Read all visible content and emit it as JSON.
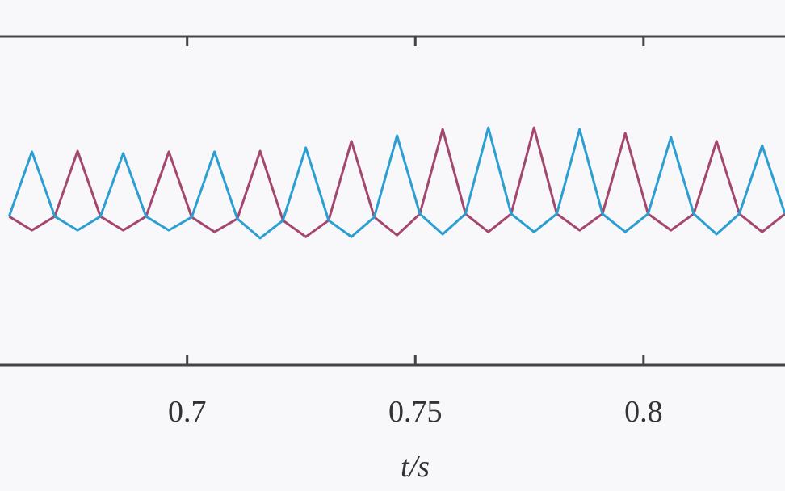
{
  "chart_data": {
    "type": "line",
    "xlabel": "t/s",
    "x": [
      0.661,
      0.666,
      0.671,
      0.676,
      0.681,
      0.686,
      0.691,
      0.696,
      0.701,
      0.706,
      0.711,
      0.716,
      0.721,
      0.726,
      0.731,
      0.736,
      0.741,
      0.746,
      0.751,
      0.756,
      0.761,
      0.766,
      0.771,
      0.776,
      0.781,
      0.786,
      0.791,
      0.796,
      0.801,
      0.806,
      0.811,
      0.816,
      0.821,
      0.826,
      0.831
    ],
    "series": [
      {
        "color": "#a3476f",
        "values": [
          0.452,
          0.41,
          0.452,
          0.651,
          0.452,
          0.41,
          0.452,
          0.649,
          0.45,
          0.405,
          0.445,
          0.651,
          0.44,
          0.39,
          0.44,
          0.681,
          0.45,
          0.395,
          0.46,
          0.717,
          0.46,
          0.405,
          0.46,
          0.722,
          0.46,
          0.41,
          0.46,
          0.705,
          0.46,
          0.41,
          0.46,
          0.681,
          0.46,
          0.405,
          0.46
        ]
      },
      {
        "color": "#2b9fd2",
        "values": [
          0.452,
          0.649,
          0.452,
          0.41,
          0.452,
          0.644,
          0.452,
          0.41,
          0.45,
          0.649,
          0.445,
          0.386,
          0.44,
          0.661,
          0.44,
          0.39,
          0.45,
          0.698,
          0.46,
          0.398,
          0.46,
          0.722,
          0.46,
          0.405,
          0.46,
          0.717,
          0.46,
          0.405,
          0.46,
          0.693,
          0.46,
          0.398,
          0.46,
          0.668,
          0.46
        ]
      }
    ],
    "xlim": [
      0.659,
      0.831
    ],
    "ylim": [
      0,
      1
    ],
    "xticks": [
      0.7,
      0.75,
      0.8
    ]
  }
}
